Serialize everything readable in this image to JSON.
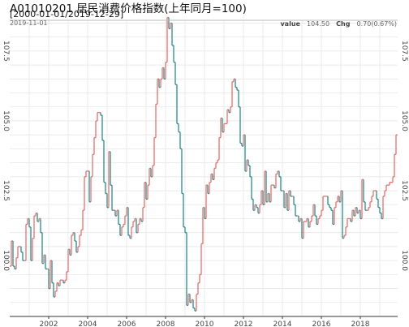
{
  "chart_data": {
    "type": "line",
    "title": "A01010201 居民消费价格指数(上年同月=100)",
    "subtitle": "[2000-01-01/2019-12-29]",
    "date_label": "2019-11-01",
    "legend": {
      "value_label": "value",
      "value": "104.50",
      "chg_label": "Chg",
      "chg": "0.70(0.67%)"
    },
    "x_ticks": [
      "2002",
      "2004",
      "2006",
      "2008",
      "2010",
      "2012",
      "2014",
      "2016",
      "2018"
    ],
    "y_ticks": [
      "100.0",
      "102.5",
      "105.0",
      "107.5"
    ],
    "xlim": [
      "2000-01",
      "2019-12"
    ],
    "ylim": [
      98.0,
      108.6
    ],
    "grid": true,
    "colors": {
      "up": "#e8706c",
      "down": "#2b8c8c",
      "grid": "#e6e6e6",
      "axis": "#333333"
    },
    "series": [
      {
        "start": "2000-01",
        "values": [
          99.8,
          100.7,
          99.8,
          99.7,
          100.1,
          100.5,
          100.5,
          100.3,
          100.0,
          100.0,
          101.3,
          101.5,
          101.2,
          100.0,
          100.8,
          101.6,
          101.7,
          101.4,
          101.5,
          101.0,
          99.9,
          100.2,
          99.7,
          99.7,
          99.0,
          100.0,
          99.2,
          98.7,
          98.9,
          99.2,
          99.1,
          99.3,
          99.3,
          99.2,
          99.3,
          99.6,
          100.4,
          100.2,
          100.9,
          101.0,
          100.7,
          100.3,
          100.5,
          100.9,
          101.1,
          101.8,
          103.0,
          103.2,
          103.2,
          102.1,
          103.0,
          103.8,
          104.4,
          105.0,
          105.3,
          105.3,
          105.2,
          104.3,
          102.8,
          102.4,
          101.9,
          103.9,
          102.7,
          101.8,
          101.8,
          101.6,
          101.8,
          101.3,
          100.9,
          101.2,
          101.3,
          101.6,
          101.9,
          100.9,
          100.8,
          101.2,
          101.4,
          101.5,
          101.0,
          101.3,
          101.5,
          101.4,
          101.9,
          102.8,
          102.2,
          102.7,
          103.3,
          103.0,
          103.4,
          104.4,
          105.6,
          106.5,
          106.2,
          106.5,
          106.9,
          106.5,
          107.1,
          108.7,
          108.3,
          108.5,
          107.7,
          107.1,
          106.3,
          104.9,
          104.6,
          104.0,
          102.4,
          101.2,
          101.0,
          98.4,
          98.8,
          98.5,
          98.6,
          98.3,
          98.2,
          98.8,
          99.2,
          99.5,
          100.6,
          101.9,
          101.5,
          102.7,
          102.4,
          102.8,
          103.1,
          102.9,
          103.3,
          103.5,
          103.6,
          104.4,
          105.1,
          104.6,
          104.9,
          104.9,
          105.4,
          105.3,
          105.5,
          106.4,
          106.5,
          106.2,
          106.1,
          105.5,
          104.2,
          104.1,
          104.5,
          103.2,
          103.6,
          103.4,
          103.0,
          102.2,
          101.8,
          102.0,
          101.9,
          101.7,
          102.0,
          102.5,
          102.0,
          103.2,
          102.1,
          102.4,
          102.1,
          102.7,
          102.7,
          102.6,
          103.1,
          103.2,
          103.0,
          102.5,
          102.5,
          101.9,
          102.4,
          101.8,
          102.5,
          102.3,
          102.3,
          102.0,
          101.6,
          101.6,
          101.4,
          101.5,
          100.8,
          101.4,
          101.4,
          101.5,
          101.2,
          101.4,
          101.6,
          102.0,
          101.6,
          101.3,
          101.5,
          101.6,
          101.8,
          102.3,
          102.3,
          102.3,
          102.0,
          101.9,
          101.8,
          101.3,
          101.9,
          102.1,
          102.3,
          102.1,
          102.5,
          100.8,
          100.9,
          101.2,
          101.5,
          101.5,
          101.4,
          101.8,
          101.6,
          101.9,
          101.7,
          101.8,
          101.5,
          102.9,
          102.1,
          101.8,
          101.8,
          101.9,
          102.1,
          102.3,
          102.5,
          102.5,
          102.2,
          101.9,
          101.7,
          101.5,
          102.3,
          102.5,
          102.7,
          102.7,
          102.8,
          102.8,
          103.0,
          103.8,
          104.5
        ]
      }
    ]
  }
}
